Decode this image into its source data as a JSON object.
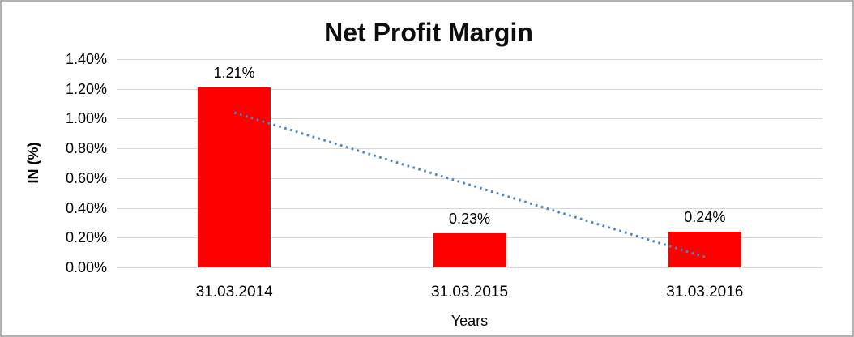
{
  "window": {
    "background": "#ffffff",
    "border_color": "#b3b3b3"
  },
  "chart_data": {
    "type": "bar",
    "title": "Net Profit Margin",
    "xlabel": "Years",
    "ylabel": "IN (%)",
    "categories": [
      "31.03.2014",
      "31.03.2015",
      "31.03.2016"
    ],
    "values": [
      1.21,
      0.23,
      0.24
    ],
    "value_labels": [
      "1.21%",
      "0.23%",
      "0.24%"
    ],
    "ylim": [
      0,
      1.4
    ],
    "ytick_step": 0.2,
    "ytick_labels": [
      "0.00%",
      "0.20%",
      "0.40%",
      "0.60%",
      "0.80%",
      "1.00%",
      "1.20%",
      "1.40%"
    ],
    "grid": true,
    "legend": "none",
    "bar_color": "#ff0000",
    "gridline_color": "#d9d9d9",
    "text_color": "#000000",
    "trendline": {
      "kind": "linear",
      "style": "dotted",
      "color": "#4a86c8",
      "start_value": 1.04,
      "end_value": 0.07
    }
  }
}
